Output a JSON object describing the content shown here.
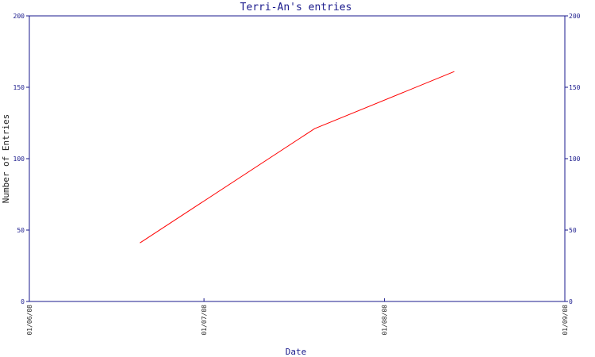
{
  "chart_data": {
    "type": "line",
    "title": "Terri-An's entries",
    "xlabel": "Date",
    "ylabel": "Number of Entries",
    "x_ticks": [
      "01/06/08",
      "01/07/08",
      "01/08/08",
      "01/09/08"
    ],
    "y_ticks": [
      0,
      50,
      100,
      150,
      200
    ],
    "ylim": [
      0,
      200
    ],
    "xlim": [
      "01/06/08",
      "01/09/08"
    ],
    "grid": false,
    "secondary_y_axis": true,
    "series": [
      {
        "color": "#ff0000",
        "x": [
          "2008-06-20",
          "2008-07-20",
          "2008-08-13"
        ],
        "y": [
          41,
          121,
          161
        ]
      }
    ]
  }
}
